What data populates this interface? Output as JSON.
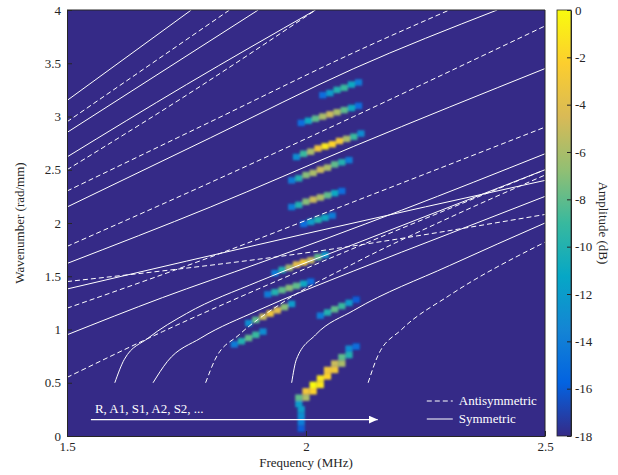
{
  "chart_data": {
    "type": "heatmap",
    "xlabel": "Frequency (MHz)",
    "ylabel": "Wavenumber (rad/mm)",
    "xlim": [
      1.5,
      2.5
    ],
    "xticks": [
      1.5,
      2,
      2.5
    ],
    "ylim": [
      0,
      4
    ],
    "yticks": [
      0,
      0.5,
      1,
      1.5,
      2,
      2.5,
      3,
      3.5,
      4
    ],
    "legend": "lower right",
    "colorbar": {
      "label": "Amplitude (dB)",
      "range": [
        -18,
        0
      ],
      "ticks": [
        0,
        -2,
        -4,
        -6,
        -8,
        -10,
        -12,
        -14,
        -16,
        -18
      ]
    },
    "heatmap": {
      "cell_size": [
        0.015,
        0.06
      ],
      "cells": [
        [
          2.035,
          3.2,
          -15
        ],
        [
          2.05,
          3.22,
          -12
        ],
        [
          2.065,
          3.25,
          -10
        ],
        [
          2.08,
          3.27,
          -9
        ],
        [
          2.095,
          3.3,
          -11
        ],
        [
          2.11,
          3.32,
          -14
        ],
        [
          1.99,
          2.94,
          -15
        ],
        [
          2.005,
          2.96,
          -11
        ],
        [
          2.02,
          2.98,
          -8
        ],
        [
          2.035,
          3.0,
          -6
        ],
        [
          2.05,
          3.02,
          -5
        ],
        [
          2.065,
          3.04,
          -6
        ],
        [
          2.08,
          3.06,
          -8
        ],
        [
          2.095,
          3.08,
          -11
        ],
        [
          2.11,
          3.1,
          -15
        ],
        [
          1.98,
          2.62,
          -13
        ],
        [
          1.995,
          2.65,
          -9
        ],
        [
          2.01,
          2.67,
          -6
        ],
        [
          2.025,
          2.7,
          -3
        ],
        [
          2.04,
          2.72,
          -1
        ],
        [
          2.055,
          2.74,
          -2
        ],
        [
          2.07,
          2.77,
          -3
        ],
        [
          2.085,
          2.79,
          -6
        ],
        [
          2.1,
          2.81,
          -9
        ],
        [
          2.115,
          2.84,
          -13
        ],
        [
          1.97,
          2.4,
          -14
        ],
        [
          1.985,
          2.42,
          -10
        ],
        [
          2.0,
          2.45,
          -7
        ],
        [
          2.015,
          2.47,
          -6
        ],
        [
          2.03,
          2.5,
          -5
        ],
        [
          2.045,
          2.52,
          -6
        ],
        [
          2.06,
          2.55,
          -8
        ],
        [
          2.075,
          2.57,
          -10
        ],
        [
          2.09,
          2.59,
          -14
        ],
        [
          1.97,
          2.15,
          -14
        ],
        [
          1.985,
          2.17,
          -10
        ],
        [
          2.0,
          2.2,
          -7
        ],
        [
          2.015,
          2.22,
          -5
        ],
        [
          2.03,
          2.24,
          -6
        ],
        [
          2.045,
          2.26,
          -8
        ],
        [
          2.06,
          2.28,
          -11
        ],
        [
          2.075,
          2.3,
          -15
        ],
        [
          1.995,
          1.99,
          -15
        ],
        [
          2.01,
          2.01,
          -12
        ],
        [
          2.025,
          2.03,
          -10
        ],
        [
          2.04,
          2.05,
          -11
        ],
        [
          2.055,
          2.07,
          -14
        ],
        [
          1.935,
          1.53,
          -14
        ],
        [
          1.95,
          1.56,
          -10
        ],
        [
          1.965,
          1.58,
          -6
        ],
        [
          1.98,
          1.61,
          -4
        ],
        [
          1.995,
          1.63,
          -3
        ],
        [
          2.01,
          1.65,
          -5
        ],
        [
          2.025,
          1.68,
          -8
        ],
        [
          2.04,
          1.7,
          -12
        ],
        [
          1.92,
          1.33,
          -14
        ],
        [
          1.935,
          1.35,
          -10
        ],
        [
          1.95,
          1.37,
          -8
        ],
        [
          1.965,
          1.39,
          -7
        ],
        [
          1.98,
          1.41,
          -8
        ],
        [
          1.995,
          1.43,
          -11
        ],
        [
          2.01,
          1.45,
          -15
        ],
        [
          1.88,
          1.06,
          -13
        ],
        [
          1.895,
          1.09,
          -8
        ],
        [
          1.91,
          1.12,
          -5
        ],
        [
          1.925,
          1.15,
          -3
        ],
        [
          1.94,
          1.18,
          -4
        ],
        [
          1.955,
          1.21,
          -7
        ],
        [
          1.97,
          1.24,
          -12
        ],
        [
          1.85,
          0.86,
          -14
        ],
        [
          1.865,
          0.89,
          -10
        ],
        [
          1.88,
          0.92,
          -8
        ],
        [
          1.895,
          0.95,
          -9
        ],
        [
          1.91,
          0.98,
          -13
        ],
        [
          2.03,
          1.13,
          -14
        ],
        [
          2.045,
          1.16,
          -10
        ],
        [
          2.06,
          1.19,
          -8
        ],
        [
          2.075,
          1.22,
          -9
        ],
        [
          2.09,
          1.25,
          -12
        ],
        [
          2.105,
          1.28,
          -16
        ],
        [
          1.985,
          0.3,
          -12
        ],
        [
          1.985,
          0.36,
          -8
        ],
        [
          2.0,
          0.36,
          -6
        ],
        [
          2.0,
          0.42,
          -3
        ],
        [
          2.015,
          0.42,
          -2
        ],
        [
          2.015,
          0.48,
          0
        ],
        [
          2.03,
          0.48,
          -1
        ],
        [
          2.03,
          0.54,
          -1
        ],
        [
          2.045,
          0.56,
          -2
        ],
        [
          2.045,
          0.62,
          -3
        ],
        [
          2.06,
          0.62,
          -3
        ],
        [
          2.06,
          0.68,
          -5
        ],
        [
          2.075,
          0.68,
          -6
        ],
        [
          2.075,
          0.74,
          -8
        ],
        [
          2.09,
          0.76,
          -10
        ],
        [
          2.09,
          0.82,
          -13
        ],
        [
          2.105,
          0.84,
          -15
        ],
        [
          1.99,
          0.07,
          -16
        ],
        [
          1.99,
          0.13,
          -14
        ],
        [
          1.99,
          0.19,
          -13
        ],
        [
          1.99,
          0.25,
          -12
        ]
      ]
    },
    "series": [
      {
        "name": "Antisymmetric",
        "type": "line",
        "line_style": "dashed",
        "color": "#ffffff",
        "curves": [
          {
            "x": [
              1.5,
              1.84
            ],
            "y": [
              2.95,
              4.0
            ]
          },
          {
            "x": [
              1.5,
              1.75,
              2.02
            ],
            "y": [
              2.5,
              3.2,
              4.0
            ]
          },
          {
            "x": [
              1.5,
              1.8,
              2.1,
              2.3
            ],
            "y": [
              2.3,
              2.95,
              3.6,
              4.0
            ]
          },
          {
            "x": [
              1.5,
              1.8,
              2.1,
              2.5
            ],
            "y": [
              1.78,
              2.38,
              3.0,
              3.85
            ]
          },
          {
            "x": [
              1.5,
              1.8,
              2.1,
              2.5
            ],
            "y": [
              1.2,
              1.68,
              2.2,
              2.9
            ]
          },
          {
            "x": [
              1.5,
              1.7,
              1.9,
              2.2,
              2.5
            ],
            "y": [
              0.55,
              0.98,
              1.38,
              1.95,
              2.5
            ]
          },
          {
            "x": [
              1.5,
              2.0,
              2.5
            ],
            "y": [
              1.45,
              1.72,
              2.08
            ]
          },
          {
            "x": [
              1.79,
              1.81,
              1.86,
              1.95,
              2.1,
              2.3,
              2.5
            ],
            "y": [
              0.5,
              0.72,
              0.95,
              1.25,
              1.62,
              2.05,
              2.45
            ]
          },
          {
            "x": [
              2.13,
              2.15,
              2.2,
              2.3,
              2.5
            ],
            "y": [
              0.5,
              0.75,
              1.0,
              1.32,
              1.82
            ]
          }
        ]
      },
      {
        "name": "Symmetric",
        "type": "line",
        "line_style": "solid",
        "color": "#ffffff",
        "curves": [
          {
            "x": [
              1.5,
              1.76
            ],
            "y": [
              3.15,
              4.0
            ]
          },
          {
            "x": [
              1.5,
              1.9
            ],
            "y": [
              2.85,
              4.0
            ]
          },
          {
            "x": [
              1.5,
              1.75,
              2.02
            ],
            "y": [
              2.62,
              3.3,
              4.0
            ]
          },
          {
            "x": [
              1.5,
              1.8,
              2.1,
              2.4
            ],
            "y": [
              2.15,
              2.8,
              3.45,
              4.0
            ]
          },
          {
            "x": [
              1.5,
              1.8,
              2.1,
              2.5
            ],
            "y": [
              1.62,
              2.15,
              2.72,
              3.45
            ]
          },
          {
            "x": [
              1.5,
              2.0,
              2.5
            ],
            "y": [
              1.38,
              1.9,
              2.4
            ]
          },
          {
            "x": [
              1.5,
              1.7,
              1.9,
              2.2,
              2.5
            ],
            "y": [
              0.95,
              1.3,
              1.62,
              2.12,
              2.65
            ]
          },
          {
            "x": [
              1.6,
              1.62,
              1.67,
              1.75,
              1.9,
              2.1,
              2.5
            ],
            "y": [
              0.5,
              0.72,
              0.92,
              1.15,
              1.45,
              1.8,
              2.5
            ]
          },
          {
            "x": [
              1.68,
              1.71,
              1.78,
              1.9,
              2.1,
              2.3,
              2.5
            ],
            "y": [
              0.5,
              0.7,
              0.92,
              1.18,
              1.55,
              1.9,
              2.25
            ]
          },
          {
            "x": [
              1.97,
              1.98,
              2.02,
              2.1,
              2.3,
              2.5
            ],
            "y": [
              0.5,
              0.72,
              0.95,
              1.18,
              1.6,
              2.0
            ]
          }
        ]
      }
    ],
    "annotations": [
      {
        "text": "R, A1, S1, A2, S2, ...",
        "x": 1.55,
        "y": 0.22,
        "x_end": 2.15
      }
    ]
  }
}
